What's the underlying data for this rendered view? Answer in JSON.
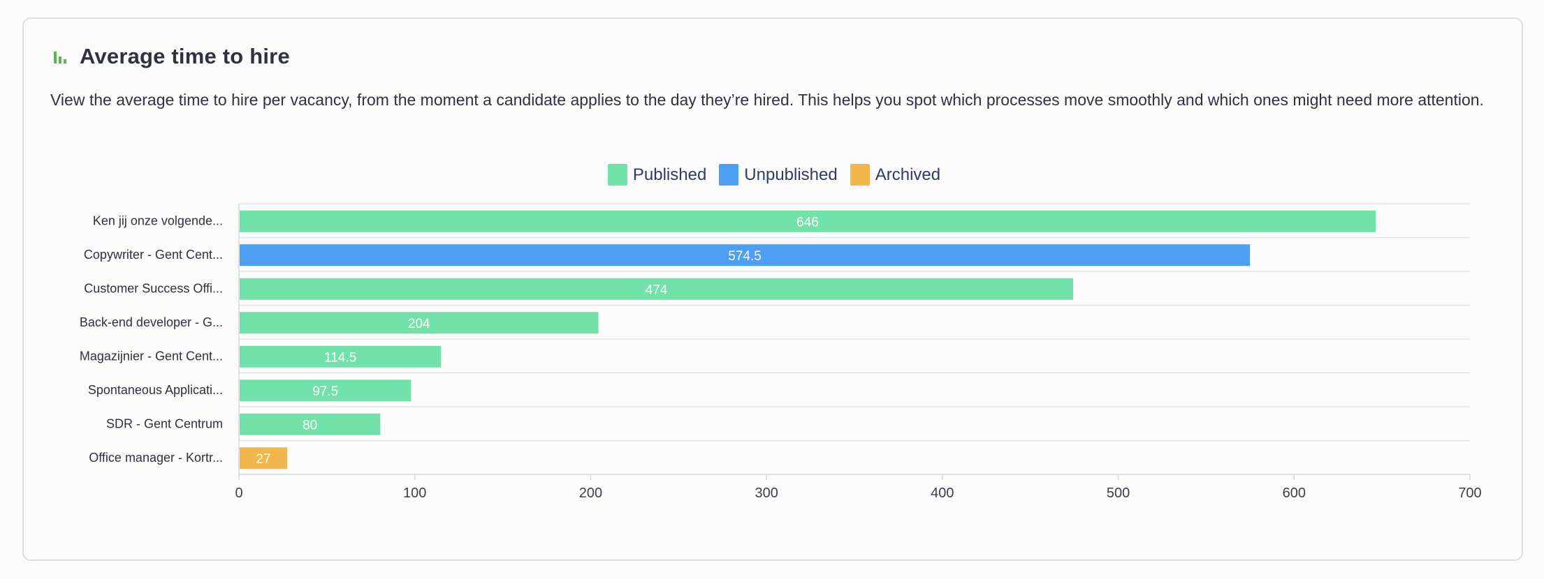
{
  "card": {
    "title": "Average time to hire",
    "description": "View the average time to hire per vacancy, from the moment a candidate applies to the day they’re hired. This helps you spot which processes move smoothly and which ones might need more attention.",
    "icon": "bar-chart-icon",
    "icon_color": "#5bb552"
  },
  "legend": [
    {
      "label": "Published",
      "color": "#71e3a9"
    },
    {
      "label": "Unpublished",
      "color": "#4c9ff5"
    },
    {
      "label": "Archived",
      "color": "#f2b74a"
    }
  ],
  "chart_data": {
    "type": "bar",
    "orientation": "horizontal",
    "categories": [
      "Ken jij onze volgende...",
      "Copywriter - Gent Cent...",
      "Customer Success Offi...",
      "Back-end developer - G...",
      "Magazijnier - Gent Cent...",
      "Spontaneous Applicati...",
      "SDR - Gent Centrum",
      "Office manager - Kortr..."
    ],
    "values": [
      646,
      574.5,
      474,
      204,
      114.5,
      97.5,
      80,
      27
    ],
    "value_labels": [
      "646",
      "574.5",
      "474",
      "204",
      "114.5",
      "97.5",
      "80",
      "27"
    ],
    "status": [
      "Published",
      "Unpublished",
      "Published",
      "Published",
      "Published",
      "Published",
      "Published",
      "Archived"
    ],
    "xlim": [
      0,
      700
    ],
    "xticks": [
      0,
      100,
      200,
      300,
      400,
      500,
      600,
      700
    ],
    "xtick_labels": [
      "0",
      "100",
      "200",
      "300",
      "400",
      "500",
      "600",
      "700"
    ],
    "grid": true,
    "legend_position": "top-center"
  }
}
